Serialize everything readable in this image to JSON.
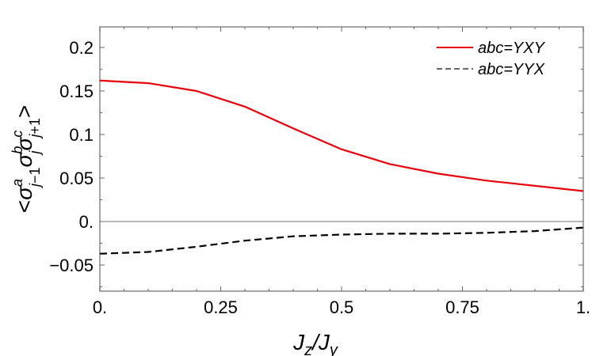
{
  "chart_data": {
    "type": "line",
    "title": "",
    "xlabel": "J_z/J_y",
    "ylabel": "<σ^a_{j-1} σ^b_j σ^c_{j+1}>",
    "xlim": [
      0,
      1
    ],
    "ylim": [
      -0.08,
      0.225
    ],
    "x_ticks": [
      0,
      0.25,
      0.5,
      0.75,
      1
    ],
    "x_tick_labels": [
      "0.",
      "0.25",
      "0.5",
      "0.75",
      "1."
    ],
    "y_ticks": [
      -0.05,
      0,
      0.05,
      0.1,
      0.15,
      0.2
    ],
    "y_tick_labels": [
      "−0.05",
      "0.",
      "0.05",
      "0.1",
      "0.15",
      "0.2"
    ],
    "grid": false,
    "zero_line": true,
    "legend_position": "upper right",
    "x": [
      0,
      0.1,
      0.2,
      0.3,
      0.4,
      0.5,
      0.6,
      0.7,
      0.8,
      0.9,
      1.0
    ],
    "series": [
      {
        "name": "abc=YXY",
        "color": "#e8000b",
        "style": "solid",
        "values": [
          0.162,
          0.159,
          0.15,
          0.132,
          0.107,
          0.083,
          0.066,
          0.055,
          0.047,
          0.041,
          0.035
        ]
      },
      {
        "name": "abc=YYX",
        "color": "#000000",
        "style": "dashed",
        "values": [
          -0.037,
          -0.035,
          -0.029,
          -0.022,
          -0.017,
          -0.015,
          -0.014,
          -0.014,
          -0.013,
          -0.011,
          -0.007
        ]
      }
    ]
  },
  "labels": {
    "xlabel_main": "J",
    "xlabel_sub1": "z",
    "xlabel_slash": "/J",
    "xlabel_sub2": "y",
    "legend": [
      "abc=YXY",
      "abc=YYX"
    ]
  }
}
